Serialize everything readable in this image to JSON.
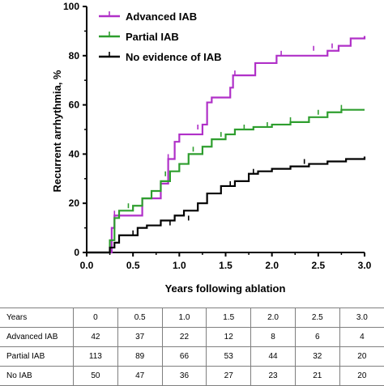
{
  "chart_data": {
    "type": "line",
    "xlabel": "Years following ablation",
    "ylabel": "Recurrent arrhythmia, %",
    "xlim": [
      0,
      3.0
    ],
    "ylim": [
      0,
      100
    ],
    "x_ticks": [
      "0.0",
      "0.5",
      "1.0",
      "1.5",
      "2.0",
      "2.5",
      "3.0"
    ],
    "y_ticks": [
      "0",
      "20",
      "40",
      "60",
      "80",
      "100"
    ],
    "grid": false,
    "legend_position": "top-left",
    "series": [
      {
        "name": "Advanced IAB",
        "color": "#b030c8",
        "x": [
          0,
          0.27,
          0.27,
          0.3,
          0.6,
          0.6,
          0.8,
          0.88,
          0.95,
          1.0,
          1.25,
          1.3,
          1.35,
          1.55,
          1.58,
          1.8,
          1.82,
          2.05,
          2.6,
          2.72,
          2.85,
          3.0
        ],
        "y": [
          0,
          5,
          10,
          15,
          17,
          22,
          28,
          38,
          45,
          48,
          52,
          61,
          63,
          67,
          72,
          72,
          77,
          80,
          82,
          84,
          87,
          88
        ],
        "censored": [
          [
            0.3,
            15
          ],
          [
            0.88,
            38
          ],
          [
            1.2,
            50
          ],
          [
            1.6,
            72
          ],
          [
            2.1,
            80
          ],
          [
            2.45,
            82
          ],
          [
            2.65,
            83
          ]
        ]
      },
      {
        "name": "Partial IAB",
        "color": "#2e9e2e",
        "x": [
          0,
          0.25,
          0.3,
          0.35,
          0.5,
          0.6,
          0.7,
          0.8,
          0.9,
          1.0,
          1.1,
          1.25,
          1.35,
          1.5,
          1.6,
          1.8,
          2.0,
          2.2,
          2.4,
          2.6,
          2.75,
          3.0
        ],
        "y": [
          0,
          5,
          14,
          17,
          19,
          22,
          25,
          29,
          33,
          36,
          40,
          43,
          46,
          48,
          50,
          51,
          52,
          53,
          55,
          57,
          58,
          58
        ],
        "censored": [
          [
            0.45,
            18
          ],
          [
            0.85,
            31
          ],
          [
            1.15,
            41
          ],
          [
            1.45,
            47
          ],
          [
            1.7,
            50
          ],
          [
            1.95,
            51
          ],
          [
            2.2,
            53
          ],
          [
            2.5,
            56
          ],
          [
            2.75,
            58
          ]
        ]
      },
      {
        "name": "No evidence of IAB",
        "color": "#000000",
        "x": [
          0,
          0.25,
          0.3,
          0.35,
          0.55,
          0.65,
          0.8,
          0.95,
          1.05,
          1.2,
          1.3,
          1.45,
          1.6,
          1.75,
          1.85,
          2.0,
          2.2,
          2.4,
          2.6,
          2.8,
          3.0
        ],
        "y": [
          0,
          2,
          4,
          7,
          10,
          11,
          13,
          15,
          17,
          20,
          24,
          27,
          29,
          32,
          33,
          34,
          35,
          36,
          37,
          38,
          39
        ],
        "censored": [
          [
            0.5,
            7
          ],
          [
            0.9,
            11
          ],
          [
            1.1,
            13
          ],
          [
            1.55,
            27
          ],
          [
            1.8,
            32
          ],
          [
            2.35,
            36
          ]
        ]
      }
    ]
  },
  "risk_table": {
    "header": [
      "Years",
      "0",
      "0.5",
      "1.0",
      "1.5",
      "2.0",
      "2.5",
      "3.0"
    ],
    "rows": [
      {
        "label": "Advanced IAB",
        "values": [
          "42",
          "37",
          "22",
          "12",
          "8",
          "6",
          "4"
        ]
      },
      {
        "label": "Partial IAB",
        "values": [
          "113",
          "89",
          "66",
          "53",
          "44",
          "32",
          "20"
        ]
      },
      {
        "label": "No IAB",
        "values": [
          "50",
          "47",
          "36",
          "27",
          "23",
          "21",
          "20"
        ]
      }
    ]
  }
}
